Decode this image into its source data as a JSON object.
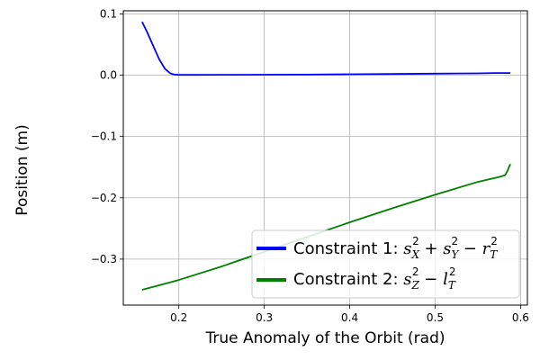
{
  "chart_data": {
    "type": "line",
    "title": "",
    "xlabel": "True Anomaly of the Orbit (rad)",
    "ylabel": "Position (m)",
    "xlim": [
      0.135,
      0.608
    ],
    "ylim": [
      -0.375,
      0.105
    ],
    "xticks": [
      0.2,
      0.3,
      0.4,
      0.5,
      0.6
    ],
    "xtick_labels": [
      "0.2",
      "0.3",
      "0.4",
      "0.5",
      "0.6"
    ],
    "yticks": [
      0.1,
      0.0,
      -0.1,
      -0.2,
      -0.3
    ],
    "ytick_labels": [
      "0.1",
      "0.0",
      "−0.1",
      "−0.2",
      "−0.3"
    ],
    "grid": true,
    "legend_position": "lower-right",
    "series": [
      {
        "name": "Constraint 1: s_X^2 + s_Y^2 − r_T^2",
        "legend_prefix": "Constraint 1: ",
        "color": "#0000ff",
        "x": [
          0.157,
          0.163,
          0.17,
          0.177,
          0.184,
          0.19,
          0.195,
          0.2,
          0.21,
          0.22,
          0.25,
          0.3,
          0.35,
          0.4,
          0.45,
          0.5,
          0.55,
          0.57,
          0.588
        ],
        "y": [
          0.087,
          0.07,
          0.048,
          0.026,
          0.01,
          0.003,
          0.001,
          0.0005,
          0.0005,
          0.0005,
          0.0006,
          0.0008,
          0.001,
          0.0015,
          0.002,
          0.0025,
          0.003,
          0.0035,
          0.0035
        ]
      },
      {
        "name": "Constraint 2: s_Z^2 − l_T^2",
        "legend_prefix": "Constraint 2: ",
        "color": "#008000",
        "x": [
          0.157,
          0.2,
          0.25,
          0.3,
          0.35,
          0.4,
          0.45,
          0.5,
          0.55,
          0.575,
          0.582,
          0.585,
          0.588
        ],
        "y": [
          -0.35,
          -0.334,
          -0.312,
          -0.288,
          -0.264,
          -0.24,
          -0.217,
          -0.195,
          -0.174,
          -0.166,
          -0.163,
          -0.155,
          -0.145
        ]
      }
    ]
  }
}
